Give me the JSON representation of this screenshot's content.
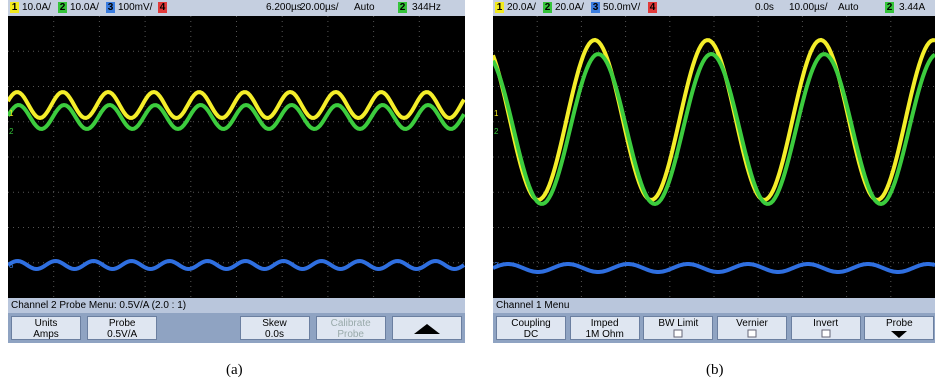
{
  "panels": [
    {
      "status": [
        "1",
        "10.0A/",
        "2",
        "10.0A/",
        "3",
        "100mV/",
        "4",
        "6.200µs",
        "20.00µs/",
        "Auto",
        "2",
        "344Hz"
      ],
      "markers": [
        "1",
        "2",
        "3"
      ],
      "menu_title": "Channel 2 Probe Menu: 0.5V/A (2.0 : 1)",
      "softkeys": [
        {
          "label": "Units",
          "value": "Amps"
        },
        {
          "label": "Probe",
          "value": "0.5V/A"
        },
        {
          "label": "Skew",
          "value": "0.0s"
        },
        {
          "label": "Calibrate",
          "value": "Probe"
        }
      ],
      "caption": "(a)"
    },
    {
      "status": [
        "1",
        "20.0A/",
        "2",
        "20.0A/",
        "3",
        "50.0mV/",
        "4",
        "0.0s",
        "10.00µs/",
        "Auto",
        "2",
        "3.44A"
      ],
      "markers": [
        "1",
        "2",
        "3"
      ],
      "menu_title": "Channel 1 Menu",
      "softkeys": [
        {
          "label": "Coupling",
          "value": "DC"
        },
        {
          "label": "Imped",
          "value": "1M Ohm"
        },
        {
          "label": "BW Limit"
        },
        {
          "label": "Vernier"
        },
        {
          "label": "Invert"
        },
        {
          "label": "Probe"
        }
      ],
      "caption": "(b)"
    }
  ]
}
